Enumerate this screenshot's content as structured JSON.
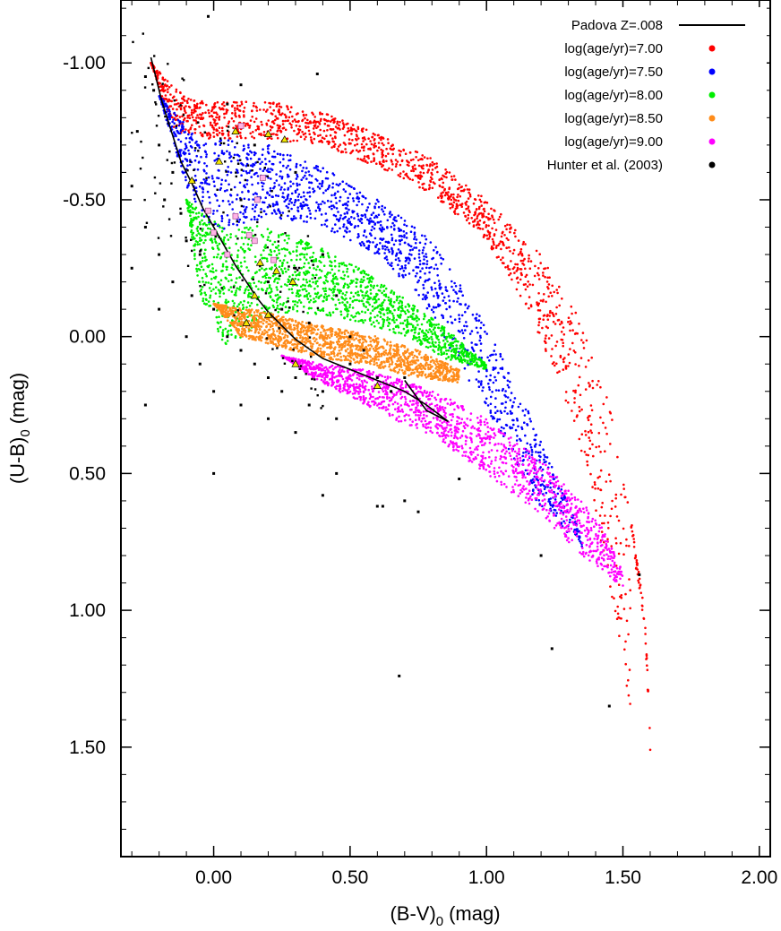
{
  "chart_data": {
    "type": "scatter",
    "title": "",
    "xlabel": "(B-V)",
    "xlabel_sub": "0",
    "xlabel_unit": "(mag)",
    "ylabel": "(U-B)",
    "ylabel_sub": "0",
    "ylabel_unit": "(mag)",
    "xlim": [
      -0.34,
      2.04
    ],
    "ylim": [
      1.9,
      -1.23
    ],
    "y_inverted": true,
    "grid": false,
    "legend_position": "top-right",
    "x_ticks": [
      {
        "value": 0.0,
        "label": "0.00"
      },
      {
        "value": 0.5,
        "label": "0.50"
      },
      {
        "value": 1.0,
        "label": "1.00"
      },
      {
        "value": 1.5,
        "label": "1.50"
      },
      {
        "value": 2.0,
        "label": "2.00"
      }
    ],
    "y_ticks": [
      {
        "value": -1.0,
        "label": "-1.00"
      },
      {
        "value": -0.5,
        "label": "-0.50"
      },
      {
        "value": 0.0,
        "label": "0.00"
      },
      {
        "value": 0.5,
        "label": "0.50"
      },
      {
        "value": 1.0,
        "label": "1.00"
      },
      {
        "value": 1.5,
        "label": "1.50"
      }
    ],
    "series": [
      {
        "name": "Padova Z=.008",
        "kind": "line",
        "color": "#000000",
        "points": [
          [
            -0.23,
            -1.02
          ],
          [
            -0.19,
            -0.86
          ],
          [
            -0.12,
            -0.64
          ],
          [
            -0.08,
            -0.56
          ],
          [
            -0.04,
            -0.47
          ],
          [
            0.0,
            -0.4
          ],
          [
            0.04,
            -0.33
          ],
          [
            0.08,
            -0.26
          ],
          [
            0.12,
            -0.2
          ],
          [
            0.16,
            -0.14
          ],
          [
            0.2,
            -0.09
          ],
          [
            0.25,
            -0.04
          ],
          [
            0.3,
            0.01
          ],
          [
            0.4,
            0.08
          ],
          [
            0.5,
            0.12
          ],
          [
            0.6,
            0.16
          ],
          [
            0.7,
            0.2
          ],
          [
            0.78,
            0.25
          ],
          [
            0.86,
            0.31
          ],
          [
            0.78,
            0.27
          ],
          [
            0.7,
            0.16
          ]
        ]
      },
      {
        "name": "log(age/yr)=7.00",
        "kind": "band",
        "color": "#ff0000",
        "upper": [
          [
            -0.23,
            -1.0
          ],
          [
            -0.1,
            -0.87
          ],
          [
            0.0,
            -0.86
          ],
          [
            0.2,
            -0.86
          ],
          [
            0.4,
            -0.82
          ],
          [
            0.6,
            -0.74
          ],
          [
            0.8,
            -0.65
          ],
          [
            1.0,
            -0.5
          ],
          [
            1.2,
            -0.3
          ],
          [
            1.35,
            -0.05
          ],
          [
            1.45,
            0.25
          ],
          [
            1.52,
            0.6
          ],
          [
            1.58,
            1.0
          ],
          [
            1.6,
            1.45
          ]
        ],
        "lower": [
          [
            -0.23,
            -1.0
          ],
          [
            -0.15,
            -0.75
          ],
          [
            0.0,
            -0.72
          ],
          [
            0.2,
            -0.72
          ],
          [
            0.4,
            -0.7
          ],
          [
            0.6,
            -0.62
          ],
          [
            0.8,
            -0.52
          ],
          [
            1.0,
            -0.35
          ],
          [
            1.15,
            -0.1
          ],
          [
            1.28,
            0.2
          ],
          [
            1.38,
            0.55
          ],
          [
            1.47,
            1.0
          ],
          [
            1.53,
            1.4
          ]
        ]
      },
      {
        "name": "log(age/yr)=7.50",
        "kind": "band",
        "color": "#0000ff",
        "upper": [
          [
            -0.2,
            -0.88
          ],
          [
            -0.05,
            -0.72
          ],
          [
            0.05,
            -0.72
          ],
          [
            0.2,
            -0.7
          ],
          [
            0.4,
            -0.62
          ],
          [
            0.6,
            -0.5
          ],
          [
            0.8,
            -0.35
          ],
          [
            0.95,
            -0.12
          ],
          [
            1.1,
            0.15
          ],
          [
            1.25,
            0.5
          ],
          [
            1.35,
            0.72
          ]
        ],
        "lower": [
          [
            -0.2,
            -0.88
          ],
          [
            -0.1,
            -0.55
          ],
          [
            0.0,
            -0.38
          ],
          [
            0.2,
            -0.44
          ],
          [
            0.4,
            -0.4
          ],
          [
            0.6,
            -0.3
          ],
          [
            0.75,
            -0.15
          ],
          [
            0.9,
            0.1
          ],
          [
            1.05,
            0.35
          ],
          [
            1.18,
            0.6
          ],
          [
            1.3,
            0.72
          ]
        ]
      },
      {
        "name": "log(age/yr)=8.00",
        "kind": "band",
        "color": "#00ee00",
        "upper": [
          [
            -0.1,
            -0.5
          ],
          [
            0.0,
            -0.42
          ],
          [
            0.2,
            -0.4
          ],
          [
            0.4,
            -0.32
          ],
          [
            0.55,
            -0.24
          ],
          [
            0.7,
            -0.14
          ],
          [
            0.85,
            -0.03
          ],
          [
            1.0,
            0.1
          ]
        ],
        "lower": [
          [
            -0.1,
            -0.5
          ],
          [
            -0.05,
            -0.15
          ],
          [
            0.05,
            0.05
          ],
          [
            0.2,
            -0.08
          ],
          [
            0.4,
            -0.08
          ],
          [
            0.55,
            -0.05
          ],
          [
            0.7,
            0.0
          ],
          [
            0.85,
            0.08
          ],
          [
            1.0,
            0.12
          ]
        ]
      },
      {
        "name": "log(age/yr)=8.50",
        "kind": "band",
        "color": "#ff8c1a",
        "upper": [
          [
            0.0,
            -0.12
          ],
          [
            0.15,
            -0.1
          ],
          [
            0.3,
            -0.06
          ],
          [
            0.45,
            -0.03
          ],
          [
            0.6,
            0.0
          ],
          [
            0.75,
            0.05
          ],
          [
            0.9,
            0.12
          ]
        ],
        "lower": [
          [
            0.0,
            -0.12
          ],
          [
            0.1,
            0.0
          ],
          [
            0.25,
            0.04
          ],
          [
            0.4,
            0.08
          ],
          [
            0.55,
            0.1
          ],
          [
            0.7,
            0.14
          ],
          [
            0.9,
            0.17
          ]
        ]
      },
      {
        "name": "log(age/yr)=9.00",
        "kind": "band",
        "color": "#ff00ff",
        "upper": [
          [
            0.25,
            0.07
          ],
          [
            0.4,
            0.1
          ],
          [
            0.55,
            0.12
          ],
          [
            0.7,
            0.16
          ],
          [
            0.85,
            0.22
          ],
          [
            1.0,
            0.3
          ],
          [
            1.2,
            0.45
          ],
          [
            1.4,
            0.65
          ],
          [
            1.5,
            0.85
          ]
        ],
        "lower": [
          [
            0.25,
            0.07
          ],
          [
            0.38,
            0.16
          ],
          [
            0.5,
            0.22
          ],
          [
            0.65,
            0.3
          ],
          [
            0.8,
            0.36
          ],
          [
            1.0,
            0.5
          ],
          [
            1.2,
            0.65
          ],
          [
            1.35,
            0.8
          ],
          [
            1.48,
            0.9
          ]
        ]
      },
      {
        "name": "Hunter et al. (2003)",
        "kind": "points",
        "color": "#000000",
        "points": [
          [
            -0.25,
            -0.95
          ],
          [
            -0.22,
            -0.9
          ],
          [
            -0.28,
            -0.75
          ],
          [
            -0.2,
            -0.7
          ],
          [
            -0.15,
            -0.6
          ],
          [
            -0.3,
            -0.55
          ],
          [
            -0.18,
            -0.5
          ],
          [
            -0.12,
            -0.45
          ],
          [
            -0.25,
            -0.4
          ],
          [
            -0.1,
            -0.35
          ],
          [
            -0.2,
            -0.3
          ],
          [
            -0.05,
            -0.3
          ],
          [
            -0.15,
            -0.2
          ],
          [
            -0.08,
            -0.15
          ],
          [
            -0.2,
            -0.1
          ],
          [
            0.0,
            -0.1
          ],
          [
            -0.1,
            0.0
          ],
          [
            0.05,
            0.0
          ],
          [
            -0.05,
            0.1
          ],
          [
            0.1,
            0.05
          ],
          [
            0.15,
            0.1
          ],
          [
            0.2,
            0.15
          ],
          [
            0.25,
            0.2
          ],
          [
            0.3,
            0.15
          ],
          [
            0.35,
            0.25
          ],
          [
            0.4,
            0.2
          ],
          [
            0.45,
            0.3
          ],
          [
            0.1,
            0.25
          ],
          [
            0.0,
            0.2
          ],
          [
            0.2,
            0.3
          ],
          [
            0.3,
            0.35
          ],
          [
            0.5,
            0.1
          ],
          [
            0.55,
            0.05
          ],
          [
            0.6,
            0.15
          ],
          [
            0.65,
            0.2
          ],
          [
            0.7,
            0.15
          ],
          [
            0.2,
            -0.2
          ],
          [
            0.3,
            -0.25
          ],
          [
            0.1,
            -0.5
          ],
          [
            0.15,
            -0.7
          ],
          [
            0.05,
            -0.85
          ],
          [
            0.3,
            -0.6
          ],
          [
            0.4,
            -0.3
          ],
          [
            0.45,
            -0.15
          ],
          [
            0.5,
            0.0
          ],
          [
            0.35,
            -0.05
          ],
          [
            0.25,
            -0.1
          ],
          [
            -0.3,
            -0.25
          ],
          [
            -0.25,
            0.25
          ],
          [
            0.0,
            0.5
          ],
          [
            0.4,
            0.58
          ],
          [
            0.45,
            0.5
          ],
          [
            0.6,
            0.62
          ],
          [
            0.62,
            0.62
          ],
          [
            0.7,
            0.6
          ],
          [
            0.75,
            0.64
          ],
          [
            0.9,
            0.52
          ],
          [
            1.2,
            0.8
          ],
          [
            1.24,
            1.14
          ],
          [
            1.56,
            0.87
          ],
          [
            0.68,
            1.24
          ],
          [
            1.45,
            1.35
          ],
          [
            0.38,
            -0.96
          ],
          [
            -0.02,
            -1.17
          ],
          [
            0.1,
            -0.92
          ]
        ]
      }
    ],
    "markers": [
      {
        "kind": "triangle",
        "color": "#f2e600",
        "points": [
          [
            0.2,
            -0.74
          ],
          [
            0.26,
            -0.72
          ],
          [
            0.08,
            -0.75
          ],
          [
            0.02,
            -0.64
          ],
          [
            -0.08,
            -0.57
          ],
          [
            0.17,
            -0.27
          ],
          [
            0.23,
            -0.24
          ],
          [
            0.29,
            -0.2
          ],
          [
            0.15,
            -0.15
          ],
          [
            0.2,
            -0.08
          ],
          [
            0.12,
            -0.05
          ],
          [
            0.3,
            0.1
          ],
          [
            0.6,
            0.18
          ]
        ]
      },
      {
        "kind": "square",
        "color": "#ffb3e6",
        "points": [
          [
            0.1,
            -0.77
          ],
          [
            0.18,
            -0.58
          ],
          [
            0.16,
            -0.5
          ],
          [
            0.08,
            -0.44
          ],
          [
            0.0,
            -0.38
          ],
          [
            0.13,
            -0.37
          ],
          [
            0.15,
            -0.35
          ],
          [
            0.05,
            -0.3
          ],
          [
            0.22,
            -0.28
          ],
          [
            -0.02,
            -0.46
          ]
        ]
      }
    ],
    "legend": [
      {
        "label": "Padova Z=.008",
        "kind": "line",
        "color": "#000000"
      },
      {
        "label": "log(age/yr)=7.00",
        "kind": "dot",
        "color": "#ff0000"
      },
      {
        "label": "log(age/yr)=7.50",
        "kind": "dot",
        "color": "#0000ff"
      },
      {
        "label": "log(age/yr)=8.00",
        "kind": "dot",
        "color": "#00ee00"
      },
      {
        "label": "log(age/yr)=8.50",
        "kind": "dot",
        "color": "#ff8c1a"
      },
      {
        "label": "log(age/yr)=9.00",
        "kind": "dot",
        "color": "#ff00ff"
      },
      {
        "label": "Hunter et al. (2003)",
        "kind": "dot",
        "color": "#000000"
      }
    ]
  }
}
